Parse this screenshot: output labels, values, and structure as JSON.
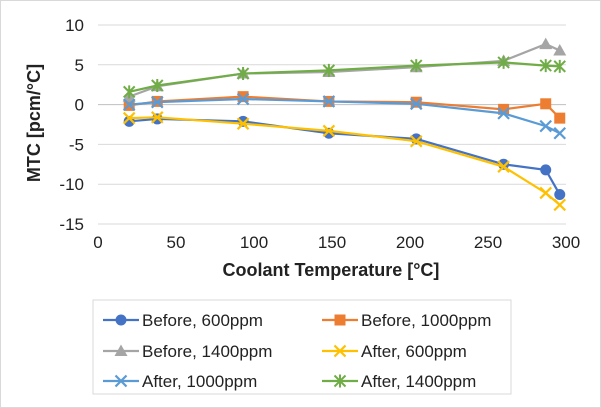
{
  "chart_data": {
    "type": "line",
    "xlabel": "Coolant Temperature [°C]",
    "ylabel": "MTC [pcm/°C]",
    "xlim": [
      0,
      300
    ],
    "ylim": [
      -15,
      10
    ],
    "xticks": [
      0,
      50,
      100,
      150,
      200,
      250,
      300
    ],
    "yticks": [
      -15,
      -10,
      -5,
      0,
      5,
      10
    ],
    "grid": "horizontal",
    "legend_position": "bottom",
    "series": [
      {
        "name": "Before, 600ppm",
        "color": "#4472c4",
        "marker": "circle",
        "x": [
          20,
          38,
          93,
          148,
          204,
          260,
          287,
          296
        ],
        "y": [
          -2.1,
          -1.8,
          -2.1,
          -3.6,
          -4.3,
          -7.5,
          -8.2,
          -11.3
        ]
      },
      {
        "name": "Before, 1000ppm",
        "color": "#ed7d31",
        "marker": "square",
        "x": [
          20,
          38,
          93,
          148,
          204,
          260,
          287,
          296
        ],
        "y": [
          -0.1,
          0.4,
          1.0,
          0.4,
          0.3,
          -0.6,
          0.1,
          -1.7
        ]
      },
      {
        "name": "Before, 1400ppm",
        "color": "#a5a5a5",
        "marker": "triangle",
        "x": [
          20,
          38,
          93,
          148,
          204,
          260,
          287,
          296
        ],
        "y": [
          1.0,
          2.3,
          3.9,
          4.1,
          4.7,
          5.5,
          7.6,
          6.8
        ]
      },
      {
        "name": "After, 600ppm",
        "color": "#ffc000",
        "marker": "x",
        "x": [
          20,
          38,
          93,
          148,
          204,
          260,
          287,
          296
        ],
        "y": [
          -1.7,
          -1.6,
          -2.4,
          -3.3,
          -4.6,
          -7.8,
          -11.1,
          -12.6
        ]
      },
      {
        "name": "After, 1000ppm",
        "color": "#5b9bd5",
        "marker": "x",
        "x": [
          20,
          38,
          93,
          148,
          204,
          260,
          287,
          296
        ],
        "y": [
          0.0,
          0.3,
          0.7,
          0.4,
          0.1,
          -1.1,
          -2.7,
          -3.6
        ]
      },
      {
        "name": "After, 1400ppm",
        "color": "#70ad47",
        "marker": "star",
        "x": [
          20,
          38,
          93,
          148,
          204,
          260,
          287,
          296
        ],
        "y": [
          1.6,
          2.4,
          3.9,
          4.3,
          4.9,
          5.3,
          4.9,
          4.8
        ]
      }
    ]
  }
}
